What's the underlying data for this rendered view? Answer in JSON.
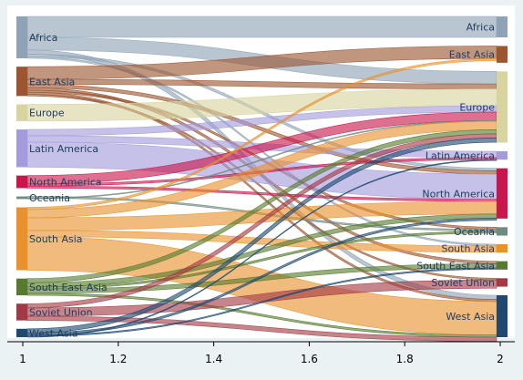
{
  "chart_data": {
    "type": "sankey",
    "title": "",
    "xlabel": "",
    "ylabel": "",
    "xlim": [
      1,
      2
    ],
    "x_ticks": [
      "1",
      "1.2",
      "1.4",
      "1.6",
      "1.8",
      "2"
    ],
    "nodes_left": [
      {
        "id": "africa",
        "label": "Africa",
        "color": "#8ea3b6",
        "value": 10
      },
      {
        "id": "east_asia",
        "label": "East Asia",
        "color": "#9b5531",
        "value": 7
      },
      {
        "id": "europe",
        "label": "Europe",
        "color": "#d8d4a0",
        "value": 4
      },
      {
        "id": "latin_america",
        "label": "Latin America",
        "color": "#a39bdb",
        "value": 9
      },
      {
        "id": "north_america",
        "label": "North America",
        "color": "#c8174e",
        "value": 3
      },
      {
        "id": "oceania",
        "label": "Oceania",
        "color": "#6f8a7e",
        "value": 0.6
      },
      {
        "id": "south_asia",
        "label": "South Asia",
        "color": "#e8922e",
        "value": 15
      },
      {
        "id": "south_east_asia",
        "label": "South East Asia",
        "color": "#577b2e",
        "value": 4
      },
      {
        "id": "soviet_union",
        "label": "Soviet Union",
        "color": "#a23a43",
        "value": 4
      },
      {
        "id": "west_asia",
        "label": "West Asia",
        "color": "#1f4970",
        "value": 2
      }
    ],
    "nodes_right": [
      {
        "id": "africa",
        "label": "Africa",
        "color": "#8ea3b6",
        "value": 5
      },
      {
        "id": "east_asia",
        "label": "East Asia",
        "color": "#9b5531",
        "value": 4
      },
      {
        "id": "europe",
        "label": "Europe",
        "color": "#d8d4a0",
        "value": 17
      },
      {
        "id": "latin_america",
        "label": "Latin America",
        "color": "#a39bdb",
        "value": 2
      },
      {
        "id": "north_america",
        "label": "North America",
        "color": "#c8174e",
        "value": 12
      },
      {
        "id": "oceania",
        "label": "Oceania",
        "color": "#6f8a7e",
        "value": 2
      },
      {
        "id": "south_asia",
        "label": "South Asia",
        "color": "#e8922e",
        "value": 2
      },
      {
        "id": "south_east_asia",
        "label": "South East Asia",
        "color": "#577b2e",
        "value": 2
      },
      {
        "id": "soviet_union",
        "label": "Soviet Union",
        "color": "#a23a43",
        "value": 2
      },
      {
        "id": "west_asia",
        "label": "West Asia",
        "color": "#1f4970",
        "value": 10
      }
    ],
    "flows": [
      {
        "source": "africa",
        "target": "africa",
        "value": 5
      },
      {
        "source": "africa",
        "target": "europe",
        "value": 3
      },
      {
        "source": "africa",
        "target": "west_asia",
        "value": 1
      },
      {
        "source": "africa",
        "target": "north_america",
        "value": 0.6
      },
      {
        "source": "africa",
        "target": "south_asia",
        "value": 0.4
      },
      {
        "source": "east_asia",
        "target": "east_asia",
        "value": 3
      },
      {
        "source": "east_asia",
        "target": "europe",
        "value": 1.2
      },
      {
        "source": "east_asia",
        "target": "north_america",
        "value": 0.8
      },
      {
        "source": "east_asia",
        "target": "south_east_asia",
        "value": 0.6
      },
      {
        "source": "east_asia",
        "target": "oceania",
        "value": 0.5
      },
      {
        "source": "east_asia",
        "target": "west_asia",
        "value": 0.5
      },
      {
        "source": "east_asia",
        "target": "soviet_union",
        "value": 0.4
      },
      {
        "source": "europe",
        "target": "europe",
        "value": 4
      },
      {
        "source": "latin_america",
        "target": "europe",
        "value": 1.5
      },
      {
        "source": "latin_america",
        "target": "latin_america",
        "value": 1.5
      },
      {
        "source": "latin_america",
        "target": "north_america",
        "value": 6
      },
      {
        "source": "north_america",
        "target": "europe",
        "value": 2
      },
      {
        "source": "north_america",
        "target": "latin_america",
        "value": 0.5
      },
      {
        "source": "north_america",
        "target": "north_america",
        "value": 0.5
      },
      {
        "source": "oceania",
        "target": "oceania",
        "value": 0.4
      },
      {
        "source": "oceania",
        "target": "europe",
        "value": 0.2
      },
      {
        "source": "south_asia",
        "target": "east_asia",
        "value": 0.5
      },
      {
        "source": "south_asia",
        "target": "europe",
        "value": 2
      },
      {
        "source": "south_asia",
        "target": "north_america",
        "value": 3
      },
      {
        "source": "south_asia",
        "target": "south_asia",
        "value": 1.5
      },
      {
        "source": "south_asia",
        "target": "west_asia",
        "value": 8
      },
      {
        "source": "south_east_asia",
        "target": "europe",
        "value": 1
      },
      {
        "source": "south_east_asia",
        "target": "north_america",
        "value": 1
      },
      {
        "source": "south_east_asia",
        "target": "oceania",
        "value": 0.5
      },
      {
        "source": "south_east_asia",
        "target": "south_east_asia",
        "value": 1
      },
      {
        "source": "south_east_asia",
        "target": "west_asia",
        "value": 0.5
      },
      {
        "source": "soviet_union",
        "target": "europe",
        "value": 1
      },
      {
        "source": "soviet_union",
        "target": "soviet_union",
        "value": 2
      },
      {
        "source": "soviet_union",
        "target": "west_asia",
        "value": 1
      },
      {
        "source": "west_asia",
        "target": "europe",
        "value": 1
      },
      {
        "source": "west_asia",
        "target": "north_america",
        "value": 0.5
      },
      {
        "source": "west_asia",
        "target": "south_east_asia",
        "value": 0.3
      },
      {
        "source": "west_asia",
        "target": "latin_america",
        "value": 0.2
      }
    ]
  }
}
